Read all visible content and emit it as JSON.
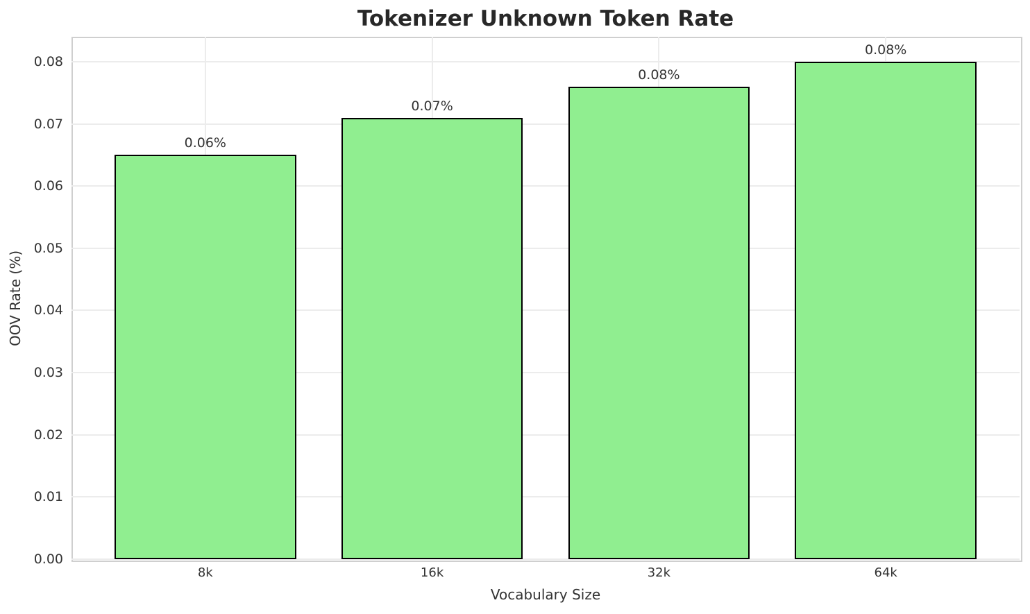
{
  "chart_data": {
    "type": "bar",
    "title": "Tokenizer Unknown Token Rate",
    "xlabel": "Vocabulary Size",
    "ylabel": "OOV Rate (%)",
    "categories": [
      "8k",
      "16k",
      "32k",
      "64k"
    ],
    "values": [
      0.065,
      0.071,
      0.076,
      0.08
    ],
    "bar_labels": [
      "0.06%",
      "0.07%",
      "0.08%",
      "0.08%"
    ],
    "ytick_labels": [
      "0.00",
      "0.01",
      "0.02",
      "0.03",
      "0.04",
      "0.05",
      "0.06",
      "0.07",
      "0.08"
    ],
    "yticks": [
      0.0,
      0.01,
      0.02,
      0.03,
      0.04,
      0.05,
      0.06,
      0.07,
      0.08
    ],
    "ylim": [
      0,
      0.084
    ],
    "grid": true,
    "legend": false,
    "colors": {
      "bar_fill": "#90EE90",
      "bar_edge": "#000000",
      "grid": "#ECECEC",
      "spine": "#CFCFCF",
      "text": "#333333",
      "title": "#282828",
      "background": "#FFFFFF"
    }
  }
}
